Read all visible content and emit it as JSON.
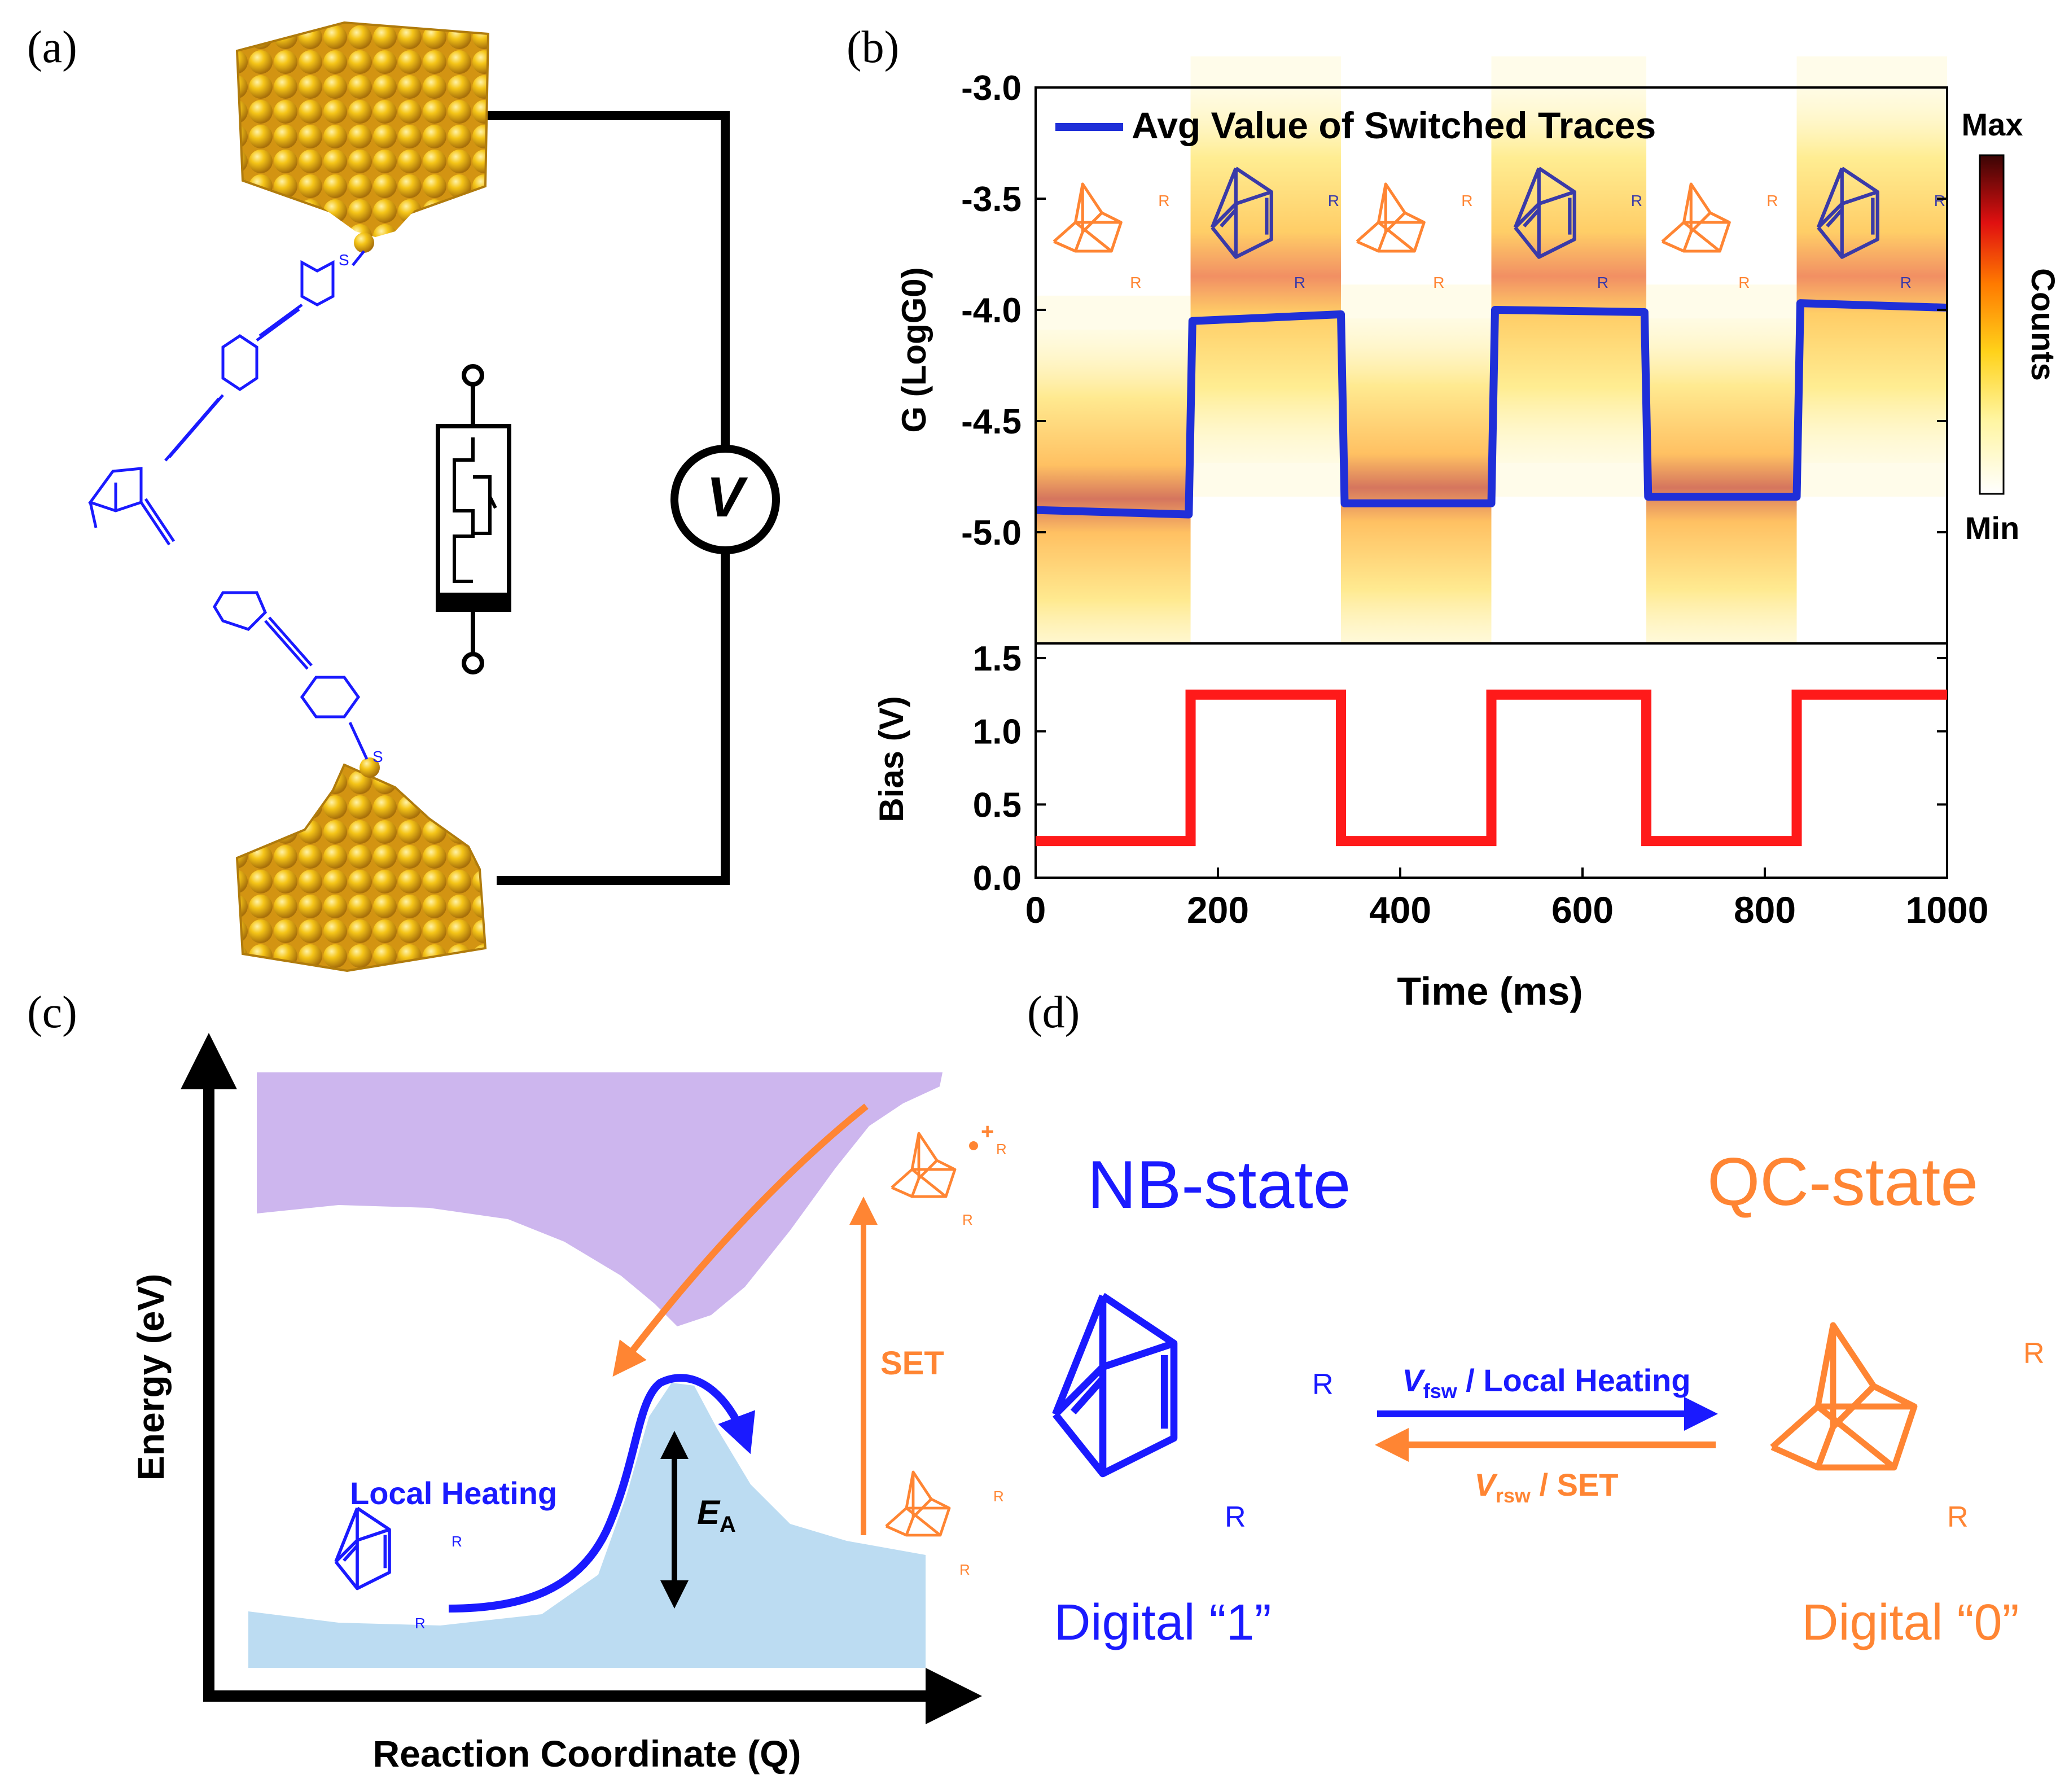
{
  "panels": {
    "a": {
      "label": "(a)",
      "sulfur_label": "S",
      "voltmeter_label": "V"
    },
    "b": {
      "label": "(b)"
    },
    "c": {
      "label": "(c)"
    },
    "d": {
      "label": "(d)"
    }
  },
  "chart_data": [
    {
      "type": "heatmap",
      "panel": "b-top",
      "title": "",
      "ylabel": "G (LogG0)",
      "xlim": [
        0,
        1000
      ],
      "ylim": [
        -5.5,
        -3.0
      ],
      "yticks": [
        "-3.0",
        "-3.5",
        "-4.0",
        "-4.5",
        "-5.0"
      ],
      "ytick_values": [
        -3.0,
        -3.5,
        -4.0,
        -4.5,
        -5.0
      ],
      "legend": "Avg Value of Switched Traces",
      "colorbar": {
        "label": "Counts",
        "max_label": "Max",
        "min_label": "Min"
      },
      "bands": [
        {
          "t0": 0,
          "t1": 170,
          "center": -4.85,
          "state": "QC"
        },
        {
          "t0": 170,
          "t1": 335,
          "center": -3.85,
          "state": "NB"
        },
        {
          "t0": 335,
          "t1": 500,
          "center": -4.8,
          "state": "QC"
        },
        {
          "t0": 500,
          "t1": 670,
          "center": -3.85,
          "state": "NB"
        },
        {
          "t0": 670,
          "t1": 835,
          "center": -4.8,
          "state": "QC"
        },
        {
          "t0": 835,
          "t1": 1000,
          "center": -3.85,
          "state": "NB"
        }
      ],
      "series": [
        {
          "name": "Avg Value of Switched Traces",
          "color": "#1f2fd8",
          "x": [
            0,
            168,
            172,
            335,
            339,
            500,
            504,
            668,
            672,
            835,
            839,
            1000
          ],
          "y": [
            -4.9,
            -4.92,
            -4.05,
            -4.02,
            -4.87,
            -4.87,
            -4.0,
            -4.01,
            -4.84,
            -4.84,
            -3.97,
            -3.99
          ]
        }
      ],
      "molecule_label": "R"
    },
    {
      "type": "line",
      "panel": "b-bottom",
      "xlabel": "Time (ms)",
      "ylabel": "Bias (V)",
      "xlim": [
        0,
        1000
      ],
      "ylim": [
        0.0,
        1.6
      ],
      "xticks": [
        "0",
        "200",
        "400",
        "600",
        "800",
        "1000"
      ],
      "xtick_values": [
        0,
        200,
        400,
        600,
        800,
        1000
      ],
      "yticks": [
        "0.0",
        "0.5",
        "1.0",
        "1.5"
      ],
      "ytick_values": [
        0.0,
        0.5,
        1.0,
        1.5
      ],
      "series": [
        {
          "name": "Bias",
          "color": "#ff1a1a",
          "x": [
            0,
            170,
            170,
            335,
            335,
            500,
            500,
            670,
            670,
            835,
            835,
            1000
          ],
          "y": [
            0.25,
            0.25,
            1.25,
            1.25,
            0.25,
            0.25,
            1.25,
            1.25,
            0.25,
            0.25,
            1.25,
            1.25
          ]
        }
      ]
    },
    {
      "type": "diagram",
      "panel": "c",
      "xlabel": "Reaction Coordinate (Q)",
      "ylabel": "Energy (eV)",
      "annotations": [
        "Local Heating",
        "E",
        "A",
        "SET",
        "R"
      ]
    }
  ],
  "panel_d": {
    "nb_title": "NB-state",
    "qc_title": "QC-state",
    "nb_digital": "Digital “1”",
    "qc_digital": "Digital “0”",
    "forward_V": "V",
    "forward_sub": "fsw",
    "forward_text": " / Local Heating",
    "reverse_V": "V",
    "reverse_sub": "rsw",
    "reverse_text": " / SET",
    "substituent": "R"
  },
  "colors": {
    "blue": "#1a1aff",
    "orange": "#ff8533",
    "gold": "#e6a817",
    "purple": "#cdb6ee",
    "lightblue": "#bcdcf2",
    "red": "#ff1a1a",
    "avgblue": "#1f2fd8"
  }
}
